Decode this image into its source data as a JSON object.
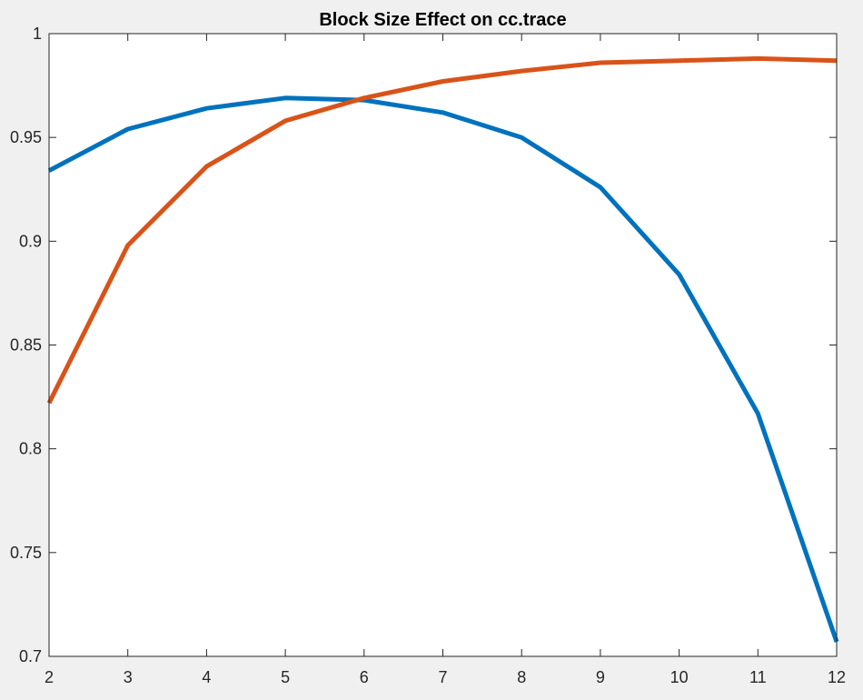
{
  "chart_data": {
    "type": "line",
    "title": "Block Size Effect on cc.trace",
    "xlabel": "",
    "ylabel": "",
    "xlim": [
      2,
      12
    ],
    "ylim": [
      0.7,
      1
    ],
    "xticks": [
      2,
      3,
      4,
      5,
      6,
      7,
      8,
      9,
      10,
      11,
      12
    ],
    "yticks": [
      0.7,
      0.75,
      0.8,
      0.85,
      0.9,
      0.95,
      1
    ],
    "ytick_labels": [
      "0.7",
      "0.75",
      "0.8",
      "0.85",
      "0.9",
      "0.95",
      "1"
    ],
    "grid": false,
    "x": [
      2,
      3,
      4,
      5,
      6,
      7,
      8,
      9,
      10,
      11,
      12
    ],
    "series": [
      {
        "color": "#0072bd",
        "values": [
          0.934,
          0.954,
          0.964,
          0.969,
          0.968,
          0.962,
          0.95,
          0.926,
          0.884,
          0.817,
          0.707
        ]
      },
      {
        "color": "#d95319",
        "values": [
          0.822,
          0.898,
          0.936,
          0.958,
          0.969,
          0.977,
          0.982,
          0.986,
          0.987,
          0.988,
          0.987
        ]
      }
    ]
  }
}
